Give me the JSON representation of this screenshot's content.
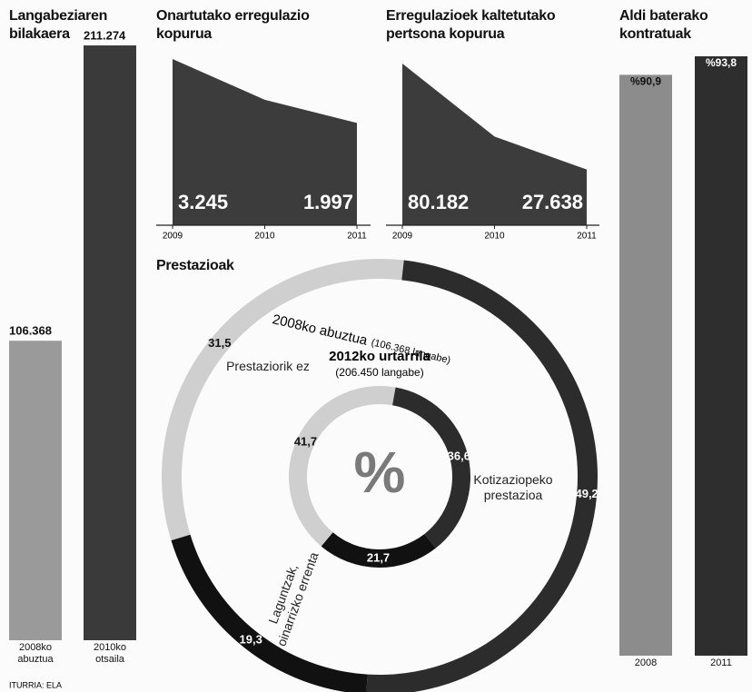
{
  "source": "ITURRIA: ELA",
  "chart_data": [
    {
      "type": "bar",
      "title": "Langabeziaren bilakaera",
      "categories": [
        "2008ko abuztua",
        "2010ko otsaila"
      ],
      "values": [
        106368,
        211274
      ],
      "value_labels": [
        "106.368",
        "211.274"
      ],
      "colors": [
        "#9a9a9a",
        "#3a3a3a"
      ]
    },
    {
      "type": "area",
      "title": "Onartutako erregulazio kopurua",
      "x": [
        2009,
        2010,
        2011
      ],
      "values": [
        3245,
        2450,
        1997
      ],
      "value_labels": [
        "3.245",
        null,
        "1.997"
      ],
      "xlim": [
        2009,
        2011
      ],
      "xticks": [
        2009,
        2010,
        2011
      ],
      "color": "#3c3c3c"
    },
    {
      "type": "area",
      "title": "Erregulazioek kaltetutako pertsona kopurua",
      "x": [
        2009,
        2010,
        2011
      ],
      "values": [
        80182,
        44000,
        27638
      ],
      "value_labels": [
        "80.182",
        null,
        "27.638"
      ],
      "xlim": [
        2009,
        2011
      ],
      "xticks": [
        2009,
        2010,
        2011
      ],
      "color": "#3c3c3c"
    },
    {
      "type": "bar",
      "title": "Aldi baterako kontratuak",
      "categories": [
        "2008",
        "2011"
      ],
      "values": [
        90.9,
        93.8
      ],
      "value_labels": [
        "%90,9",
        "%93,8"
      ],
      "colors": [
        "#8c8c8c",
        "#2e2e2e"
      ]
    },
    {
      "type": "donut",
      "title": "Prestazioak",
      "center_label": "%",
      "categories": [
        "Prestaziorik ez",
        "Kotizaziopeko prestazioa",
        "Laguntzak, oinarrizko errenta"
      ],
      "colors": [
        "#cfcfcf",
        "#2c2c2c",
        "#111111"
      ],
      "rings": [
        {
          "name": "2008ko abuztua",
          "subtitle": "(106.368 langabe)",
          "values": [
            31.5,
            49.2,
            19.3
          ],
          "value_labels": [
            "31,5",
            "49,2",
            "19,3"
          ]
        },
        {
          "name": "2012ko urtarrila",
          "subtitle": "(206.450 langabe)",
          "values": [
            41.7,
            36.6,
            21.7
          ],
          "value_labels": [
            "41,7",
            "36,6",
            "21,7"
          ]
        }
      ]
    }
  ]
}
